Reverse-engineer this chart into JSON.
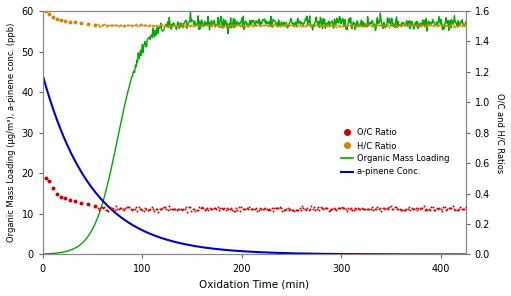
{
  "left_ylim": [
    0,
    60
  ],
  "right_ylim": [
    0.0,
    1.6
  ],
  "xlim": [
    0,
    425
  ],
  "xlabel": "Oxidation Time (min)",
  "ylabel_left": "Organic Mass Loading (μg/m³), a-pinene conc. (ppb)",
  "ylabel_right": "O/C and H/C Ratios",
  "left_yticks": [
    0,
    10,
    20,
    30,
    40,
    50,
    60
  ],
  "right_yticks": [
    0.0,
    0.2,
    0.4,
    0.6,
    0.8,
    1.0,
    1.2,
    1.4,
    1.6
  ],
  "xticks": [
    0,
    100,
    200,
    300,
    400
  ],
  "green_color": "#00aa00",
  "blue_color": "#0000cc",
  "red_color": "#cc0000",
  "gold_color": "#cc8800",
  "background_color": "#ffffff",
  "fig_bg": "#ffffff"
}
